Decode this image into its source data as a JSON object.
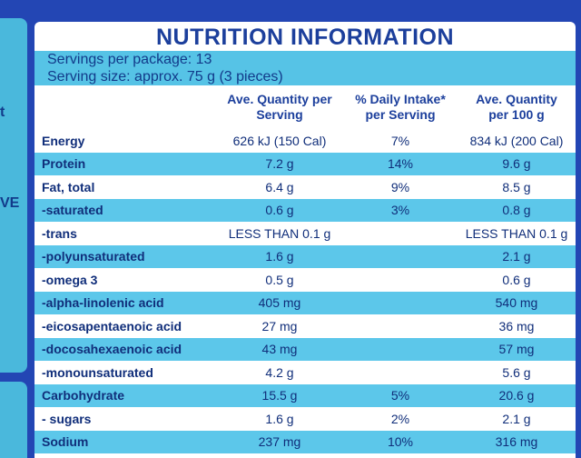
{
  "side_text": [
    "t",
    "VE"
  ],
  "header": {
    "title": "NUTRITION INFORMATION",
    "servings_per_package": "Servings per package: 13",
    "serving_size": "Serving size: approx. 75 g (3 pieces)"
  },
  "table": {
    "columns": [
      "Ave. Quantity per Serving",
      "% Daily Intake* per Serving",
      "Ave. Quantity per 100 g"
    ],
    "rows": [
      [
        "Energy",
        "626 kJ (150 Cal)",
        "7%",
        "834 kJ (200 Cal)"
      ],
      [
        "Protein",
        "7.2 g",
        "14%",
        "9.6 g"
      ],
      [
        "Fat, total",
        "6.4 g",
        "9%",
        "8.5 g"
      ],
      [
        "-saturated",
        "0.6 g",
        "3%",
        "0.8 g"
      ],
      [
        "-trans",
        "LESS THAN 0.1 g",
        null,
        "LESS THAN 0.1 g"
      ],
      [
        "-polyunsaturated",
        "1.6 g",
        null,
        "2.1 g"
      ],
      [
        "-omega 3",
        "0.5 g",
        null,
        "0.6 g"
      ],
      [
        "-alpha-linolenic acid",
        "405 mg",
        null,
        "540 mg"
      ],
      [
        "-eicosapentaenoic acid",
        "27 mg",
        null,
        "36 mg"
      ],
      [
        "-docosahexaenoic acid",
        "43 mg",
        null,
        "57 mg"
      ],
      [
        "-monounsaturated",
        "4.2 g",
        null,
        "5.6 g"
      ],
      [
        "Carbohydrate",
        "15.5 g",
        "5%",
        "20.6 g"
      ],
      [
        "- sugars",
        "1.6 g",
        "2%",
        "2.1 g"
      ],
      [
        "Sodium",
        "237 mg",
        "10%",
        "316 mg"
      ]
    ]
  }
}
